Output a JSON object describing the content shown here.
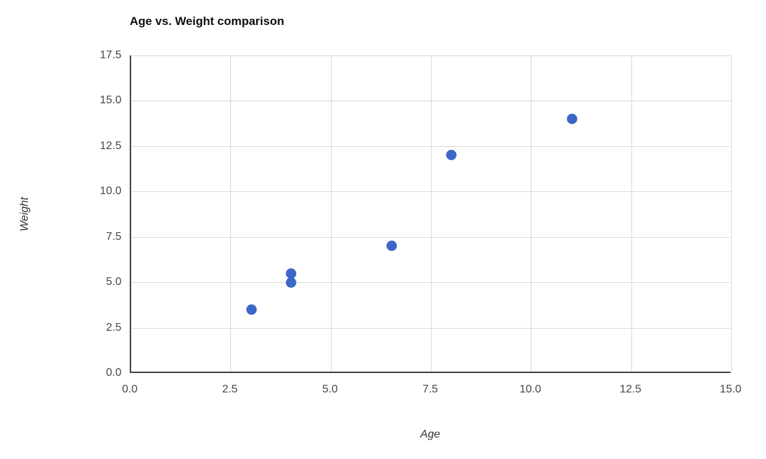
{
  "page": {
    "background_color": "#ffffff"
  },
  "chart_data": {
    "type": "scatter",
    "title": "Age vs. Weight comparison",
    "xlabel": "Age",
    "ylabel": "Weight",
    "points": [
      {
        "x": 3,
        "y": 3.5
      },
      {
        "x": 4,
        "y": 5
      },
      {
        "x": 4,
        "y": 5.5
      },
      {
        "x": 6.5,
        "y": 7
      },
      {
        "x": 8,
        "y": 12
      },
      {
        "x": 11,
        "y": 14
      }
    ],
    "xlim": [
      0,
      15
    ],
    "ylim": [
      0,
      17.5
    ],
    "xticks": [
      0,
      2.5,
      5,
      7.5,
      10,
      12.5,
      15
    ],
    "yticks": [
      0,
      2.5,
      5,
      7.5,
      10,
      12.5,
      15,
      17.5
    ],
    "xtick_labels": [
      "0.0",
      "2.5",
      "5.0",
      "7.5",
      "10.0",
      "12.5",
      "15.0"
    ],
    "ytick_labels": [
      "0.0",
      "2.5",
      "5.0",
      "7.5",
      "10.0",
      "12.5",
      "15.0",
      "17.5"
    ],
    "grid": true,
    "legend": "none",
    "marker_color": "#3b67c8",
    "marker_diameter_px": 15,
    "grid_color": "#d9d9d9",
    "axis_color": "#3f3f3f",
    "tick_text_color": "#464646",
    "title_color": "#0f0f0f",
    "label_color": "#333333"
  }
}
